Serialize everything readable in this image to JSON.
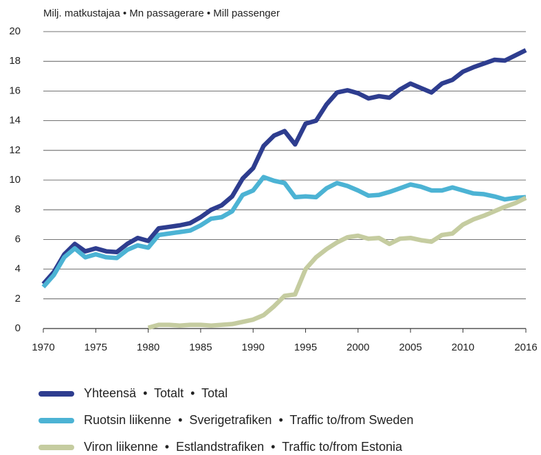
{
  "chart_data": {
    "type": "line",
    "y_label": "Milj. matkustajaa • Mn passagerare • Mill passenger",
    "x": [
      1970,
      1971,
      1972,
      1973,
      1974,
      1975,
      1976,
      1977,
      1978,
      1979,
      1980,
      1981,
      1982,
      1983,
      1984,
      1985,
      1986,
      1987,
      1988,
      1989,
      1990,
      1991,
      1992,
      1993,
      1994,
      1995,
      1996,
      1997,
      1998,
      1999,
      2000,
      2001,
      2002,
      2003,
      2004,
      2005,
      2006,
      2007,
      2008,
      2009,
      2010,
      2011,
      2012,
      2013,
      2014,
      2015,
      2016
    ],
    "series": [
      {
        "name": "Yhteensä  •  Totalt  •  Total",
        "color": "#2e3d8f",
        "values": [
          3.0,
          3.8,
          5.0,
          5.7,
          5.2,
          5.4,
          5.2,
          5.15,
          5.7,
          6.1,
          5.9,
          6.75,
          6.85,
          6.95,
          7.1,
          7.5,
          8.0,
          8.3,
          8.9,
          10.1,
          10.8,
          12.3,
          13.0,
          13.3,
          12.4,
          13.8,
          14.0,
          15.1,
          15.9,
          16.05,
          15.85,
          15.5,
          15.65,
          15.55,
          16.1,
          16.5,
          16.2,
          15.9,
          16.5,
          16.75,
          17.3,
          17.6,
          17.85,
          18.1,
          18.05,
          18.4,
          18.75
        ]
      },
      {
        "name": "Ruotsin liikenne  •  Sverigetrafiken  •  Traffic to/from Sweden",
        "color": "#4cb3d4",
        "values": [
          2.8,
          3.6,
          4.8,
          5.4,
          4.8,
          5.0,
          4.8,
          4.75,
          5.3,
          5.6,
          5.45,
          6.3,
          6.4,
          6.5,
          6.6,
          6.95,
          7.4,
          7.5,
          7.9,
          9.0,
          9.3,
          10.2,
          9.95,
          9.8,
          8.85,
          8.9,
          8.85,
          9.45,
          9.8,
          9.6,
          9.3,
          8.95,
          9.0,
          9.2,
          9.45,
          9.7,
          9.55,
          9.3,
          9.3,
          9.5,
          9.3,
          9.1,
          9.05,
          8.9,
          8.7,
          8.8,
          8.85
        ]
      },
      {
        "name": "Viron liikenne  •  Estlandstrafiken  •  Traffic to/from Estonia",
        "color": "#c5cca0",
        "values": [
          null,
          null,
          null,
          null,
          null,
          null,
          null,
          null,
          null,
          null,
          0.05,
          0.25,
          0.25,
          0.2,
          0.25,
          0.25,
          0.2,
          0.25,
          0.3,
          0.45,
          0.6,
          0.9,
          1.5,
          2.2,
          2.3,
          4.0,
          4.8,
          5.35,
          5.8,
          6.15,
          6.25,
          6.05,
          6.1,
          5.7,
          6.05,
          6.1,
          5.95,
          5.85,
          6.3,
          6.4,
          7.0,
          7.35,
          7.6,
          7.9,
          8.2,
          8.45,
          8.8
        ]
      }
    ],
    "xlim": [
      1970,
      2016
    ],
    "xticks": [
      1970,
      1975,
      1980,
      1985,
      1990,
      1995,
      2000,
      2005,
      2010,
      2016
    ],
    "ylim": [
      0,
      20
    ],
    "yticks": [
      0,
      2,
      4,
      6,
      8,
      10,
      12,
      14,
      16,
      18,
      20
    ],
    "grid": true
  }
}
